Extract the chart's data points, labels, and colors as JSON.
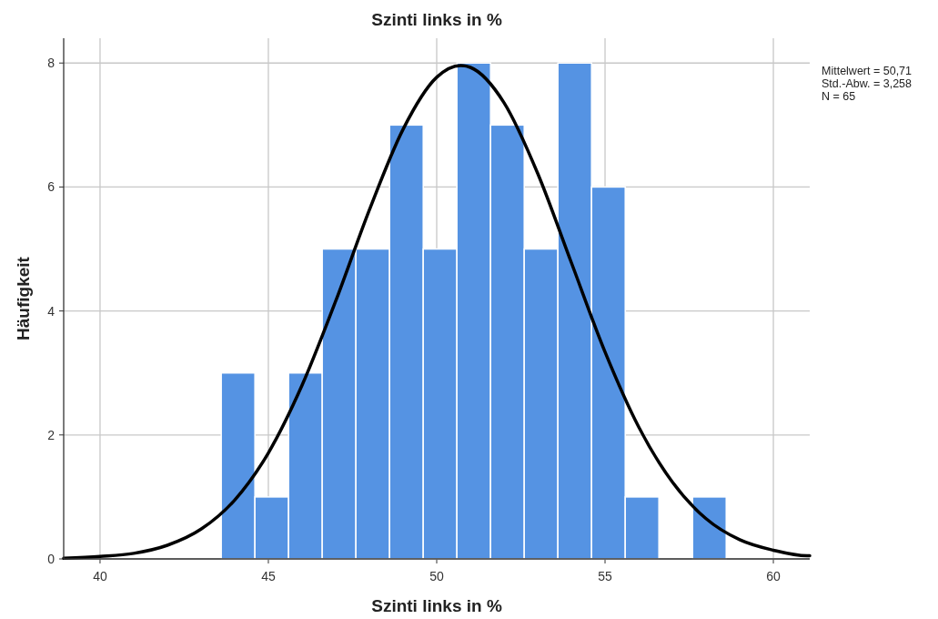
{
  "chart_data": {
    "type": "histogram",
    "title": "Szinti links in %",
    "xlabel": "Szinti links in %",
    "ylabel": "Häufigkeit",
    "bins": [
      43.6,
      44.6,
      45.6,
      46.6,
      47.6,
      48.6,
      49.6,
      50.6,
      51.6,
      52.6,
      53.6,
      54.6,
      55.6,
      56.6,
      57.6,
      58.6
    ],
    "values": [
      3,
      1,
      3,
      5,
      5,
      7,
      5,
      8,
      7,
      5,
      8,
      6,
      1,
      0,
      1
    ],
    "color": "#5593e3",
    "series": [
      {
        "type": "line",
        "color": "#000000",
        "x": [
          38.92,
          40,
          41,
          42,
          43,
          44,
          45,
          46,
          47,
          48,
          49,
          50,
          50.71,
          51,
          52,
          53,
          54,
          55,
          56,
          57,
          58,
          59,
          60,
          61,
          61.08
        ],
        "values": [
          0.01,
          0.04,
          0.09,
          0.22,
          0.48,
          0.95,
          1.71,
          2.8,
          4.16,
          5.63,
          6.93,
          7.77,
          7.96,
          7.93,
          7.36,
          6.22,
          4.78,
          3.34,
          2.13,
          1.24,
          0.65,
          0.31,
          0.14,
          0.05,
          0.05
        ]
      }
    ],
    "xlim": [
      38.92,
      61.08
    ],
    "xticks": [
      40,
      45,
      50,
      55,
      60
    ],
    "ylim": [
      0,
      8.4
    ],
    "yticks": [
      0,
      2,
      4,
      6,
      8
    ],
    "grid": true,
    "annotations": [
      "Mittelwert = 50,71",
      "Std.-Abw. = 3,258",
      "N = 65"
    ]
  }
}
